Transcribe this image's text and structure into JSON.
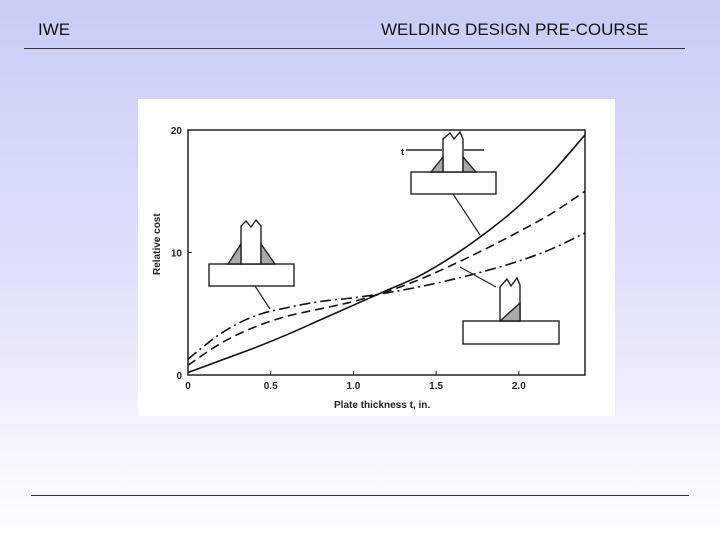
{
  "header": {
    "left": "IWE",
    "right": "WELDING DESIGN PRE-COURSE"
  },
  "chart_data": {
    "type": "line",
    "xlabel": "Plate thickness t, in.",
    "ylabel": "Relative cost",
    "xlim": [
      0,
      2.4
    ],
    "ylim": [
      0,
      20
    ],
    "x_ticks": [
      "0",
      "0.5",
      "1.0",
      "1.5",
      "2.0"
    ],
    "y_ticks": [
      "0",
      "10",
      "20"
    ],
    "grid": false,
    "series": [
      {
        "style": "solid",
        "x": [
          0,
          0.2,
          0.4,
          0.6,
          0.8,
          1.0,
          1.2,
          1.4,
          1.6,
          1.8,
          2.0,
          2.2,
          2.4
        ],
        "y": [
          0.2,
          1.2,
          2.2,
          3.3,
          4.5,
          5.7,
          6.9,
          8.1,
          9.7,
          11.6,
          13.8,
          16.5,
          19.6
        ]
      },
      {
        "style": "dashed",
        "x": [
          0,
          0.2,
          0.4,
          0.6,
          0.8,
          1.0,
          1.2,
          1.4,
          1.6,
          1.8,
          2.0,
          2.2,
          2.4
        ],
        "y": [
          0.8,
          2.6,
          3.9,
          4.8,
          5.4,
          6.0,
          6.8,
          7.8,
          9.0,
          10.3,
          11.7,
          13.2,
          15.0
        ]
      },
      {
        "style": "dash-dot",
        "x": [
          0,
          0.2,
          0.4,
          0.6,
          0.8,
          1.0,
          1.2,
          1.4,
          1.6,
          1.8,
          2.0,
          2.2,
          2.4
        ],
        "y": [
          1.3,
          3.4,
          4.8,
          5.5,
          6.0,
          6.3,
          6.7,
          7.2,
          7.8,
          8.5,
          9.3,
          10.3,
          11.6
        ]
      }
    ]
  }
}
